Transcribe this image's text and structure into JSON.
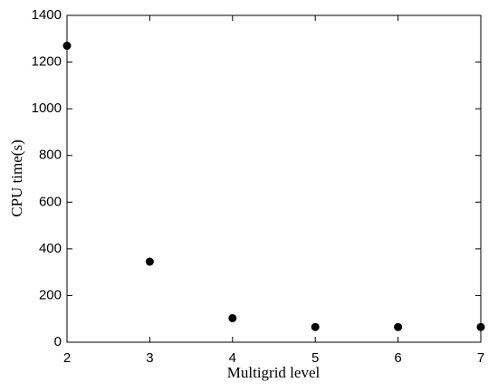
{
  "chart_data": {
    "type": "scatter",
    "x_label": "Multigrid level",
    "y_label": "CPU time(s)",
    "x": [
      2,
      3,
      4,
      5,
      6,
      7
    ],
    "values": [
      1270,
      345,
      103,
      65,
      65,
      65
    ],
    "color": "#000000",
    "xlim": [
      2,
      7
    ],
    "xticks": [
      2,
      3,
      4,
      5,
      6,
      7
    ],
    "ylim": [
      0,
      1400
    ],
    "yticks": [
      0,
      200,
      400,
      600,
      800,
      1000,
      1200,
      1400
    ],
    "grid": false
  }
}
